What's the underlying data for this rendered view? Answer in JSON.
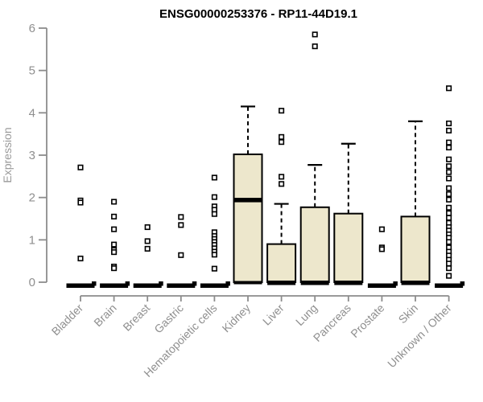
{
  "chart_data": {
    "type": "boxplot",
    "title": "ENSG00000253376 - RP11-44D19.1",
    "ylabel": "Expression",
    "xlabel": "",
    "ylim": [
      0,
      6
    ],
    "yticks": [
      0,
      1,
      2,
      3,
      4,
      5,
      6
    ],
    "grid": false,
    "legend": "none",
    "categories": [
      "Bladder",
      "Brain",
      "Breast",
      "Gastric",
      "Hematopoietic cells",
      "Kidney",
      "Liver",
      "Lung",
      "Pancreas",
      "Prostate",
      "Skin",
      "Unknown / Other"
    ],
    "boxes": [
      {
        "category": "Bladder",
        "q1": 0,
        "median": 0,
        "q3": 0,
        "whisker_low": 0,
        "whisker_high": 0,
        "outliers": [
          2.71,
          1.93,
          1.88,
          0.56
        ]
      },
      {
        "category": "Brain",
        "q1": 0,
        "median": 0,
        "q3": 0,
        "whisker_low": 0,
        "whisker_high": 0,
        "outliers": [
          1.9,
          1.55,
          1.25,
          0.89,
          0.76,
          0.71,
          0.37,
          0.33
        ]
      },
      {
        "category": "Breast",
        "q1": 0,
        "median": 0,
        "q3": 0,
        "whisker_low": 0,
        "whisker_high": 0,
        "outliers": [
          1.3,
          0.97,
          0.79
        ]
      },
      {
        "category": "Gastric",
        "q1": 0,
        "median": 0,
        "q3": 0,
        "whisker_low": 0,
        "whisker_high": 0,
        "outliers": [
          1.54,
          1.35,
          0.64
        ]
      },
      {
        "category": "Hematopoietic cells",
        "q1": 0,
        "median": 0,
        "q3": 0,
        "whisker_low": 0,
        "whisker_high": 0,
        "outliers": [
          2.47,
          2.01,
          1.79,
          1.71,
          1.61,
          1.18,
          1.09,
          1.02,
          0.95,
          0.88,
          0.8,
          0.72,
          0.65,
          0.32
        ]
      },
      {
        "category": "Kidney",
        "q1": 0,
        "median": 1.94,
        "q3": 3.02,
        "whisker_low": 0,
        "whisker_high": 4.15,
        "outliers": []
      },
      {
        "category": "Liver",
        "q1": 0,
        "median": 0,
        "q3": 0.9,
        "whisker_low": 0,
        "whisker_high": 1.85,
        "outliers": [
          4.05,
          3.43,
          3.31,
          2.49,
          2.32
        ]
      },
      {
        "category": "Lung",
        "q1": 0,
        "median": 0,
        "q3": 1.77,
        "whisker_low": 0,
        "whisker_high": 2.77,
        "outliers": [
          5.85,
          5.57
        ]
      },
      {
        "category": "Pancreas",
        "q1": 0,
        "median": 0,
        "q3": 1.62,
        "whisker_low": 0,
        "whisker_high": 3.27,
        "outliers": []
      },
      {
        "category": "Prostate",
        "q1": 0,
        "median": 0,
        "q3": 0,
        "whisker_low": 0,
        "whisker_high": 0,
        "outliers": [
          1.25,
          0.82,
          0.78
        ]
      },
      {
        "category": "Skin",
        "q1": 0,
        "median": 0,
        "q3": 1.55,
        "whisker_low": 0,
        "whisker_high": 3.8,
        "outliers": []
      },
      {
        "category": "Unknown / Other",
        "q1": 0,
        "median": 0,
        "q3": 0,
        "whisker_low": 0,
        "whisker_high": 0,
        "outliers": [
          4.58,
          3.75,
          3.58,
          3.3,
          3.18,
          2.9,
          2.74,
          2.6,
          2.45,
          2.22,
          2.08,
          1.95,
          1.76,
          1.63,
          1.52,
          1.4,
          1.3,
          1.22,
          1.13,
          1.05,
          0.95,
          0.82,
          0.72,
          0.63,
          0.53,
          0.44,
          0.33,
          0.15
        ]
      }
    ],
    "colors": {
      "box_fill": "#EDE7CC",
      "box_stroke": "#000000",
      "median": "#000000",
      "whisker": "#000000",
      "outlier_stroke": "#000000",
      "outlier_fill": "#FFFFFF",
      "axis": "#8C8C8C",
      "tick_label": "#8F8F8F",
      "axis_label": "#9A9A9A",
      "title": "#000000",
      "background": "#FFFFFF"
    }
  }
}
